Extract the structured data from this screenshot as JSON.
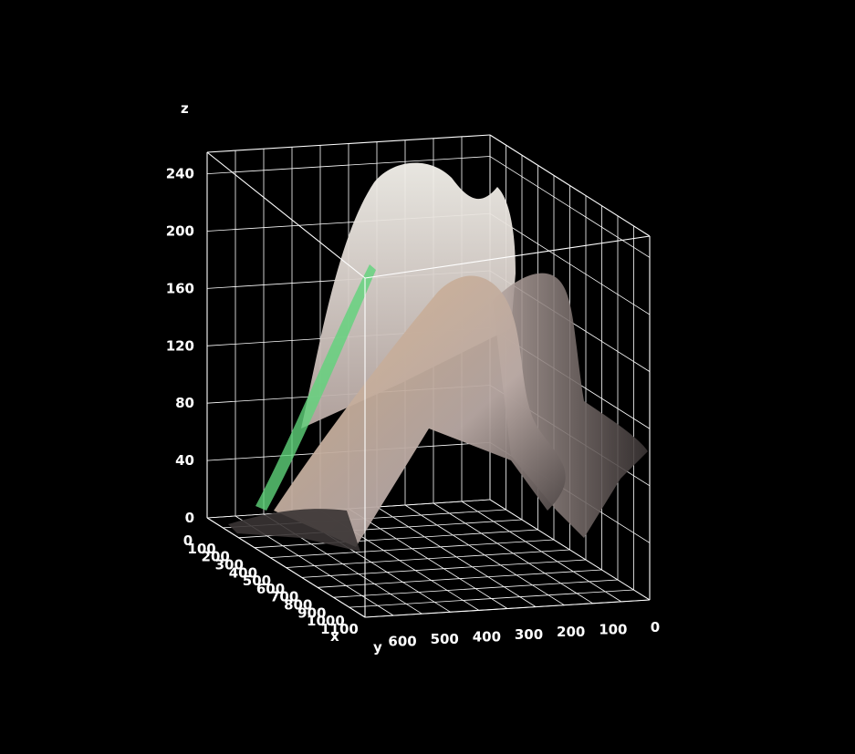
{
  "chart_data": {
    "type": "surface",
    "title": "",
    "xlabel": "x",
    "ylabel": "y",
    "zlabel": "z",
    "x_ticks": [
      "0",
      "100",
      "200",
      "300",
      "400",
      "500",
      "600",
      "700",
      "800",
      "900",
      "1000",
      "1100"
    ],
    "y_ticks": [
      "600",
      "500",
      "400",
      "300",
      "200",
      "100",
      "0"
    ],
    "z_ticks": [
      "0",
      "40",
      "80",
      "120",
      "160",
      "200",
      "240"
    ],
    "xlim": [
      0,
      1100
    ],
    "ylim": [
      0,
      650
    ],
    "zlim": [
      0,
      255
    ],
    "grid": true,
    "background": "#000000",
    "surface_colors": {
      "peak": "#f4f2ec",
      "body": "#b9a9a4",
      "ridge": "#d8b48e",
      "accent": "#5fd37a",
      "shadow": "#3a3434"
    }
  }
}
